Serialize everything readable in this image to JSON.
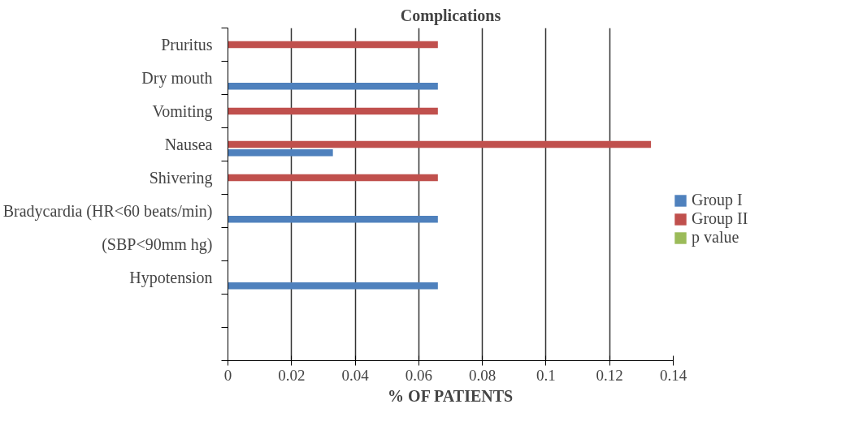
{
  "chart_data": {
    "type": "bar",
    "orientation": "horizontal",
    "title": "Complications",
    "xlabel": "% OF PATIENTS",
    "categories": [
      "Pruritus",
      "Dry mouth",
      "Vomiting",
      "Nausea",
      "Shivering",
      "Bradycardia (HR<60 beats/min)",
      "(SBP<90mm hg)",
      "Hypotension",
      null,
      null
    ],
    "series": [
      {
        "name": "Group I",
        "color": "#4f81bd",
        "values": [
          null,
          0.066,
          null,
          0.033,
          null,
          0.066,
          null,
          0.066,
          null,
          null
        ]
      },
      {
        "name": "Group II",
        "color": "#c0504d",
        "values": [
          0.066,
          null,
          0.066,
          0.133,
          0.066,
          null,
          null,
          null,
          null,
          null
        ]
      },
      {
        "name": "p value",
        "color": "#9bbb59",
        "values": [
          null,
          null,
          null,
          null,
          null,
          null,
          null,
          null,
          null,
          null
        ]
      }
    ],
    "xlim": [
      0,
      0.14
    ],
    "xticks": [
      0,
      0.02,
      0.04,
      0.06,
      0.08,
      0.1,
      0.12,
      0.14
    ],
    "grid": "x",
    "legend": "right"
  }
}
